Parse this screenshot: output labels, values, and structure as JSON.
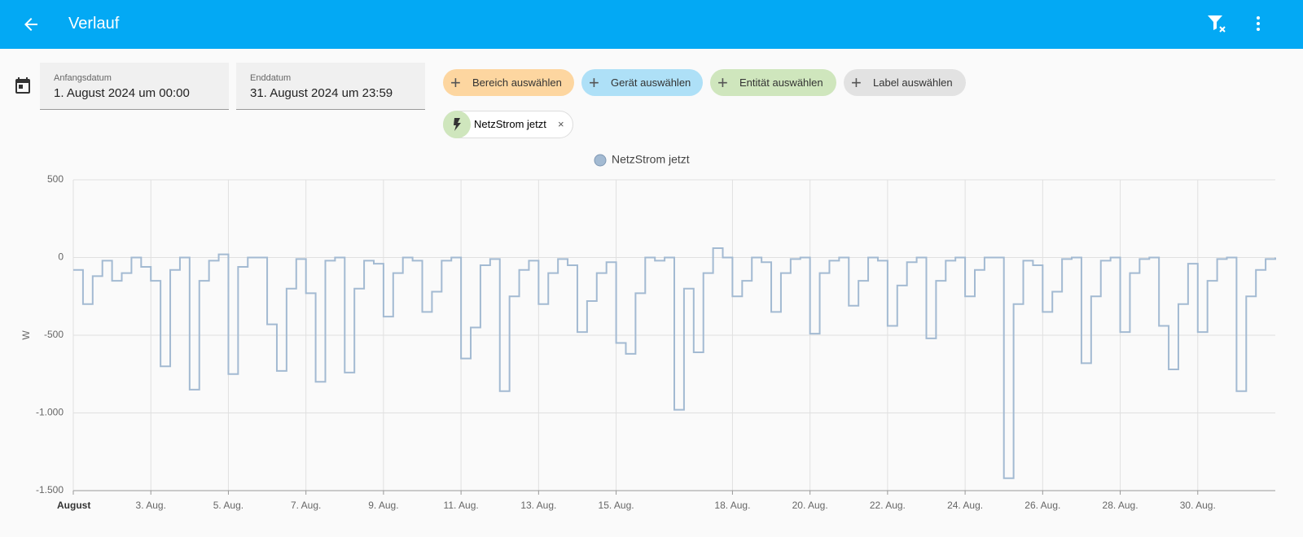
{
  "header": {
    "title": "Verlauf"
  },
  "date_range": {
    "start_label": "Anfangsdatum",
    "start_value": "1. August 2024 um 00:00",
    "end_label": "Enddatum",
    "end_value": "31. August 2024 um 23:59"
  },
  "target_pickers": [
    "Bereich auswählen",
    "Gerät auswählen",
    "Entität auswählen",
    "Label auswählen"
  ],
  "selected_entities": [
    "NetzStrom jetzt"
  ],
  "chart_data": {
    "type": "line",
    "y_label": "W",
    "x": [
      1,
      1.25,
      1.5,
      1.75,
      2,
      2.25,
      2.5,
      2.75,
      3,
      3.25,
      3.5,
      3.75,
      4,
      4.25,
      4.5,
      4.75,
      5,
      5.25,
      5.5,
      5.75,
      6,
      6.25,
      6.5,
      6.75,
      7,
      7.25,
      7.5,
      7.75,
      8,
      8.25,
      8.5,
      8.75,
      9,
      9.25,
      9.5,
      9.75,
      10,
      10.25,
      10.5,
      10.75,
      11,
      11.25,
      11.5,
      11.75,
      12,
      12.25,
      12.5,
      12.75,
      13,
      13.25,
      13.5,
      13.75,
      14,
      14.25,
      14.5,
      14.75,
      15,
      15.25,
      15.5,
      15.75,
      16,
      16.25,
      16.5,
      16.75,
      17,
      17.25,
      17.5,
      17.75,
      18,
      18.25,
      18.5,
      18.75,
      19,
      19.25,
      19.5,
      19.75,
      20,
      20.25,
      20.5,
      20.75,
      21,
      21.25,
      21.5,
      21.75,
      22,
      22.25,
      22.5,
      22.75,
      23,
      23.25,
      23.5,
      23.75,
      24,
      24.25,
      24.5,
      24.75,
      25,
      25.25,
      25.5,
      25.75,
      26,
      26.25,
      26.5,
      26.75,
      27,
      27.25,
      27.5,
      27.75,
      28,
      28.25,
      28.5,
      28.75,
      29,
      29.25,
      29.5,
      29.75,
      30,
      30.25,
      30.5,
      30.75,
      31,
      31.25,
      31.5,
      31.75,
      32
    ],
    "series": [
      {
        "name": "NetzStrom jetzt",
        "color": "#a3bad2",
        "values": [
          -80,
          -300,
          -120,
          -20,
          -150,
          -100,
          0,
          -60,
          -150,
          -700,
          -80,
          0,
          -850,
          -150,
          -20,
          20,
          -750,
          -60,
          0,
          0,
          -430,
          -730,
          -200,
          -10,
          -230,
          -800,
          -20,
          0,
          -740,
          -200,
          -20,
          -40,
          -380,
          -100,
          0,
          -20,
          -350,
          -220,
          -20,
          0,
          -650,
          -450,
          -50,
          -10,
          -860,
          -250,
          -80,
          -20,
          -300,
          -100,
          -10,
          -50,
          -480,
          -280,
          -100,
          -30,
          -550,
          -620,
          -230,
          0,
          -20,
          0,
          -980,
          -200,
          -610,
          -100,
          60,
          0,
          -250,
          -150,
          0,
          -30,
          -350,
          -100,
          -10,
          0,
          -490,
          -100,
          -20,
          0,
          -310,
          -150,
          0,
          -20,
          -440,
          -180,
          -30,
          0,
          -520,
          -150,
          -20,
          0,
          -250,
          -80,
          0,
          0,
          -1420,
          -300,
          -20,
          -50,
          -350,
          -220,
          -10,
          0,
          -680,
          -250,
          -20,
          0,
          -480,
          -100,
          -10,
          0,
          -440,
          -720,
          -300,
          -40,
          -480,
          -150,
          -10,
          0,
          -860,
          -250,
          -80,
          -10,
          0
        ]
      }
    ],
    "xlim": [
      1,
      32
    ],
    "xticks": [
      {
        "value": 1,
        "label": "August"
      },
      {
        "value": 3,
        "label": "3. Aug."
      },
      {
        "value": 5,
        "label": "5. Aug."
      },
      {
        "value": 7,
        "label": "7. Aug."
      },
      {
        "value": 9,
        "label": "9. Aug."
      },
      {
        "value": 11,
        "label": "11. Aug."
      },
      {
        "value": 13,
        "label": "13. Aug."
      },
      {
        "value": 15,
        "label": "15. Aug."
      },
      {
        "value": 18,
        "label": "18. Aug."
      },
      {
        "value": 20,
        "label": "20. Aug."
      },
      {
        "value": 22,
        "label": "22. Aug."
      },
      {
        "value": 24,
        "label": "24. Aug."
      },
      {
        "value": 26,
        "label": "26. Aug."
      },
      {
        "value": 28,
        "label": "28. Aug."
      },
      {
        "value": 30,
        "label": "30. Aug."
      }
    ],
    "ylim": [
      -1500,
      500
    ],
    "yticks": [
      500,
      0,
      -500,
      {
        "value": -1000,
        "label": "-1.000"
      },
      {
        "value": -1500,
        "label": "-1.500"
      }
    ],
    "grid": true,
    "legend": "top"
  }
}
